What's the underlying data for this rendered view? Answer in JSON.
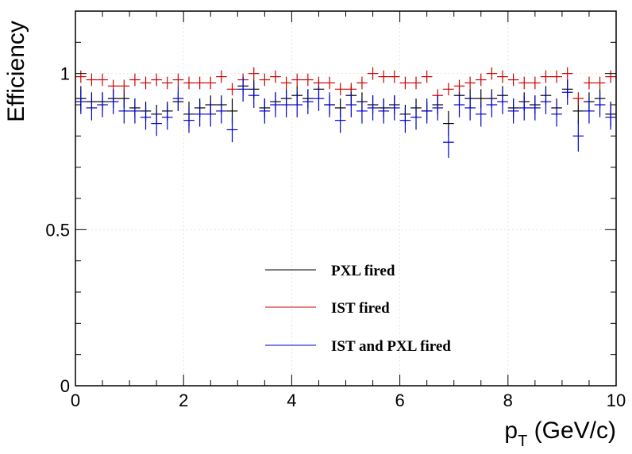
{
  "chart_data": {
    "type": "scatter",
    "title": "",
    "xlabel_main": "p",
    "xlabel_sub": "T",
    "xlabel_rest": " (GeV/c)",
    "ylabel": "Efficiency",
    "xlim": [
      0,
      10
    ],
    "ylim": [
      0,
      1.2
    ],
    "x_ticks": [
      0,
      2,
      4,
      6,
      8,
      10
    ],
    "x_tick_labels": [
      "0",
      "2",
      "4",
      "6",
      "8",
      "10"
    ],
    "y_ticks": [
      0,
      0.5,
      1
    ],
    "y_tick_labels": [
      "0",
      "0.5",
      "1"
    ],
    "grid": true,
    "legend_position": "bottom-center",
    "bin_width": 0.2,
    "x": [
      0.1,
      0.3,
      0.5,
      0.7,
      0.9,
      1.1,
      1.3,
      1.5,
      1.7,
      1.9,
      2.1,
      2.3,
      2.5,
      2.7,
      2.9,
      3.1,
      3.3,
      3.5,
      3.7,
      3.9,
      4.1,
      4.3,
      4.5,
      4.7,
      4.9,
      5.1,
      5.3,
      5.5,
      5.7,
      5.9,
      6.1,
      6.3,
      6.5,
      6.7,
      6.9,
      7.1,
      7.3,
      7.5,
      7.7,
      7.9,
      8.1,
      8.3,
      8.5,
      8.7,
      8.9,
      9.1,
      9.3,
      9.5,
      9.7,
      9.9
    ],
    "series": [
      {
        "name": "PXL fired",
        "color": "#000000",
        "values": [
          0.92,
          0.91,
          0.91,
          0.92,
          0.92,
          0.89,
          0.88,
          0.87,
          0.88,
          0.91,
          0.87,
          0.89,
          0.9,
          0.9,
          0.88,
          0.96,
          0.95,
          0.89,
          0.91,
          0.92,
          0.93,
          0.92,
          0.95,
          0.9,
          0.89,
          0.93,
          0.91,
          0.9,
          0.89,
          0.9,
          0.87,
          0.89,
          0.88,
          0.9,
          0.84,
          0.93,
          0.92,
          0.92,
          0.92,
          0.93,
          0.89,
          0.91,
          0.9,
          0.93,
          0.89,
          0.95,
          0.88,
          0.91,
          0.92,
          0.87
        ],
        "errors": [
          0.04,
          0.03,
          0.03,
          0.03,
          0.03,
          0.03,
          0.03,
          0.03,
          0.03,
          0.03,
          0.04,
          0.03,
          0.03,
          0.03,
          0.04,
          0.03,
          0.03,
          0.03,
          0.03,
          0.03,
          0.03,
          0.03,
          0.03,
          0.03,
          0.03,
          0.03,
          0.03,
          0.03,
          0.03,
          0.03,
          0.03,
          0.03,
          0.03,
          0.03,
          0.04,
          0.03,
          0.03,
          0.03,
          0.03,
          0.03,
          0.03,
          0.03,
          0.03,
          0.03,
          0.03,
          0.03,
          0.04,
          0.03,
          0.03,
          0.04
        ]
      },
      {
        "name": "IST fired",
        "color": "#cc0000",
        "values": [
          0.99,
          0.98,
          0.98,
          0.96,
          0.96,
          0.98,
          0.97,
          0.98,
          0.97,
          0.98,
          0.97,
          0.97,
          0.97,
          0.99,
          0.95,
          0.98,
          1.0,
          0.98,
          0.99,
          0.97,
          0.98,
          0.98,
          0.97,
          0.97,
          0.95,
          0.95,
          0.97,
          1.0,
          0.99,
          0.99,
          0.97,
          0.97,
          0.99,
          0.93,
          0.95,
          0.96,
          0.97,
          0.98,
          1.0,
          0.99,
          0.98,
          0.97,
          0.97,
          0.99,
          0.99,
          1.0,
          0.92,
          0.97,
          0.97,
          0.99
        ],
        "errors": [
          0.02,
          0.02,
          0.02,
          0.02,
          0.02,
          0.02,
          0.02,
          0.02,
          0.02,
          0.02,
          0.02,
          0.02,
          0.02,
          0.02,
          0.02,
          0.02,
          0.02,
          0.02,
          0.02,
          0.02,
          0.02,
          0.02,
          0.02,
          0.02,
          0.02,
          0.02,
          0.02,
          0.02,
          0.02,
          0.02,
          0.02,
          0.02,
          0.02,
          0.02,
          0.02,
          0.02,
          0.02,
          0.02,
          0.02,
          0.02,
          0.02,
          0.02,
          0.02,
          0.02,
          0.02,
          0.02,
          0.02,
          0.02,
          0.02,
          0.02
        ]
      },
      {
        "name": "IST and PXL fired",
        "color": "#0000cc",
        "values": [
          0.91,
          0.89,
          0.9,
          0.91,
          0.88,
          0.88,
          0.86,
          0.84,
          0.86,
          0.92,
          0.85,
          0.87,
          0.87,
          0.88,
          0.82,
          0.95,
          0.93,
          0.88,
          0.9,
          0.9,
          0.9,
          0.91,
          0.92,
          0.9,
          0.85,
          0.9,
          0.88,
          0.89,
          0.88,
          0.89,
          0.85,
          0.86,
          0.88,
          0.89,
          0.78,
          0.9,
          0.89,
          0.87,
          0.9,
          0.91,
          0.88,
          0.89,
          0.89,
          0.91,
          0.87,
          0.94,
          0.8,
          0.88,
          0.9,
          0.86
        ],
        "errors": [
          0.04,
          0.04,
          0.04,
          0.04,
          0.04,
          0.04,
          0.04,
          0.04,
          0.04,
          0.04,
          0.04,
          0.04,
          0.04,
          0.04,
          0.04,
          0.04,
          0.04,
          0.04,
          0.04,
          0.04,
          0.04,
          0.04,
          0.04,
          0.04,
          0.04,
          0.04,
          0.04,
          0.04,
          0.04,
          0.04,
          0.04,
          0.04,
          0.04,
          0.04,
          0.05,
          0.04,
          0.04,
          0.04,
          0.04,
          0.04,
          0.04,
          0.04,
          0.04,
          0.04,
          0.04,
          0.04,
          0.05,
          0.04,
          0.04,
          0.04
        ]
      }
    ]
  }
}
